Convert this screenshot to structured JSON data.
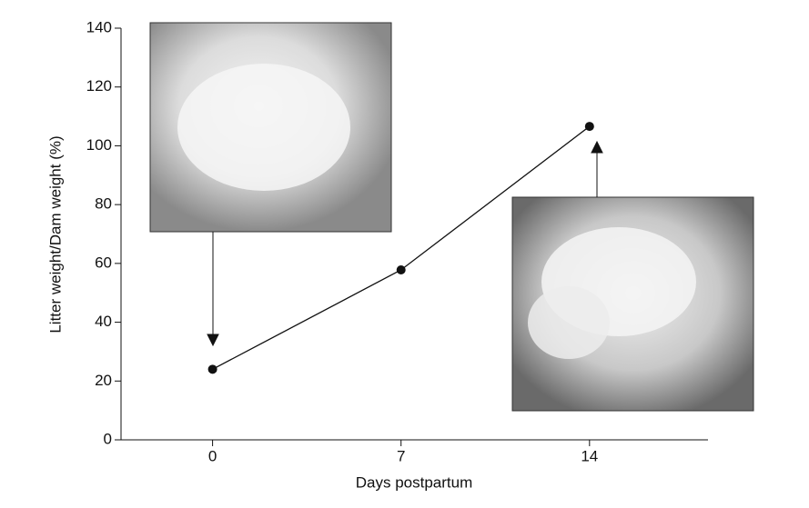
{
  "chart_data": {
    "type": "line",
    "x_label": "Days postpartum",
    "y_label": "Litter weight/Dam weight (%)",
    "x": [
      0,
      7,
      14
    ],
    "series": [
      {
        "values": [
          24,
          57.8,
          106.6
        ],
        "color": "#111111"
      }
    ],
    "xlim": [
      -3.4,
      18.4
    ],
    "xticks": [
      0,
      7,
      14
    ],
    "ylim": [
      0,
      140
    ],
    "yticks": [
      0,
      20,
      40,
      60,
      80,
      100,
      120,
      140
    ]
  }
}
